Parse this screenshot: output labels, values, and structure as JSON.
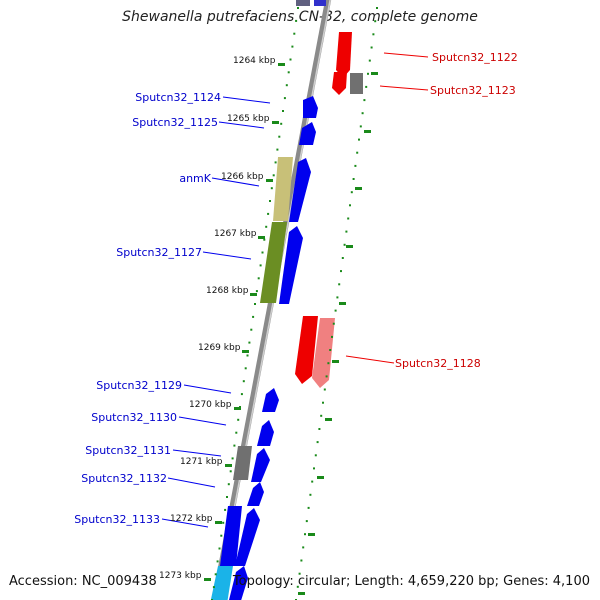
{
  "title": "Shewanella putrefaciens CN-32, complete genome",
  "footer": {
    "accession": "Accession: NC_009438",
    "summary": "Topology: circular; Length: 4,659,220 bp; Genes: 4,100"
  },
  "colors": {
    "forward_cds": "#0000ee",
    "reverse_cds": "#ee0000",
    "reverse_rna": "#f08080",
    "rna_tan": "#c8c078",
    "rna_olive": "#6b8e23",
    "pseudo_grey": "#707070",
    "cyan_feature": "#1ab3e8",
    "backbone": "#8a8a8a",
    "dots": "#1a8a1a",
    "forward_label": "#0000cc",
    "reverse_label": "#cc0000"
  },
  "ticks": [
    "1264 kbp",
    "1265 kbp",
    "1266 kbp",
    "1267 kbp",
    "1268 kbp",
    "1269 kbp",
    "1270 kbp",
    "1271 kbp",
    "1272 kbp",
    "1273 kbp"
  ],
  "genes": {
    "forward": [
      "Sputcn32_1124",
      "Sputcn32_1125",
      "anmK",
      "Sputcn32_1127",
      "Sputcn32_1129",
      "Sputcn32_1130",
      "Sputcn32_1131",
      "Sputcn32_1132",
      "Sputcn32_1133"
    ],
    "reverse": [
      "Sputcn32_1122",
      "Sputcn32_1123",
      "Sputcn32_1128"
    ]
  }
}
